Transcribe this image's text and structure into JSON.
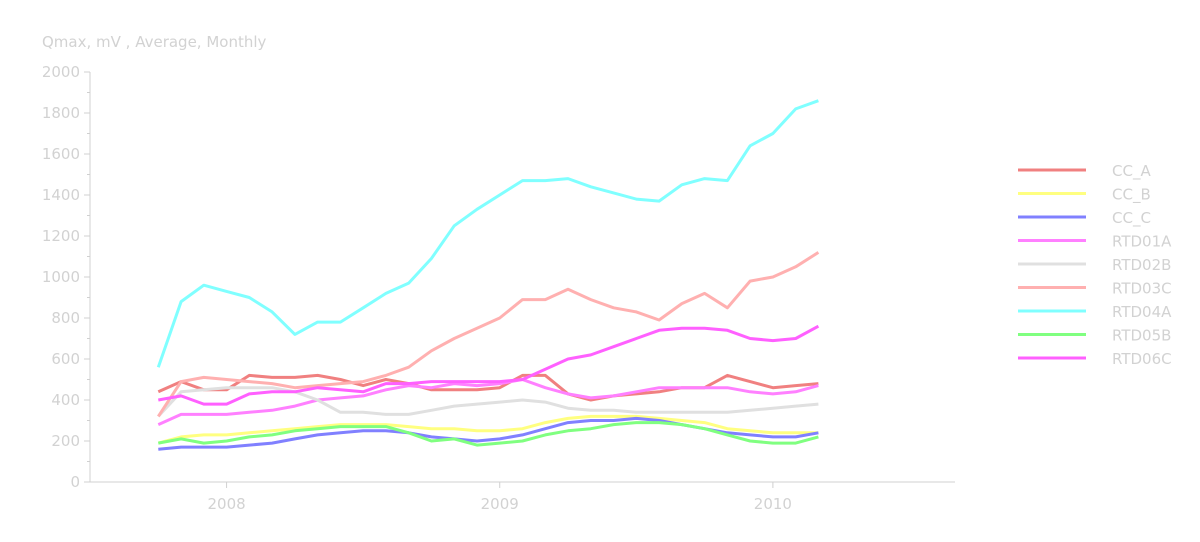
{
  "chart_data": {
    "type": "line",
    "title": "Qmax, mV , Average, Monthly",
    "xlabel": "",
    "ylabel": "",
    "xlim": [
      "2007-07-01",
      "2010-09-01"
    ],
    "ylim": [
      0,
      2000
    ],
    "y_ticks": [
      0,
      200,
      400,
      600,
      800,
      1000,
      1200,
      1400,
      1600,
      1800,
      2000
    ],
    "x_ticks": [
      {
        "label": "2008",
        "value": "2008-01-01"
      },
      {
        "label": "2009",
        "value": "2009-01-01"
      },
      {
        "label": "2010",
        "value": "2010-01-01"
      }
    ],
    "grid": false,
    "legend_position": "right",
    "x": [
      "2007-10",
      "2007-11",
      "2007-12",
      "2008-01",
      "2008-02",
      "2008-03",
      "2008-04",
      "2008-05",
      "2008-06",
      "2008-07",
      "2008-08",
      "2008-09",
      "2008-10",
      "2008-11",
      "2008-12",
      "2009-01",
      "2009-02",
      "2009-03",
      "2009-04",
      "2009-05",
      "2009-06",
      "2009-07",
      "2009-08",
      "2009-09",
      "2009-10",
      "2009-11",
      "2009-12",
      "2010-01",
      "2010-02",
      "2010-03"
    ],
    "series": [
      {
        "name": "CC_A",
        "color": "#f08080",
        "values": [
          440,
          490,
          450,
          450,
          520,
          510,
          510,
          520,
          500,
          470,
          500,
          480,
          450,
          450,
          450,
          460,
          520,
          520,
          430,
          400,
          420,
          430,
          440,
          460,
          460,
          520,
          490,
          460,
          470,
          480
        ]
      },
      {
        "name": "CC_B",
        "color": "#ffff80",
        "values": [
          190,
          220,
          230,
          230,
          240,
          250,
          260,
          270,
          280,
          280,
          280,
          270,
          260,
          260,
          250,
          250,
          260,
          290,
          310,
          320,
          320,
          320,
          310,
          300,
          290,
          260,
          250,
          240,
          240,
          240
        ]
      },
      {
        "name": "CC_C",
        "color": "#8080ff",
        "values": [
          160,
          170,
          170,
          170,
          180,
          190,
          210,
          230,
          240,
          250,
          250,
          240,
          220,
          210,
          200,
          210,
          230,
          260,
          290,
          300,
          300,
          310,
          300,
          280,
          260,
          240,
          230,
          220,
          220,
          240
        ]
      },
      {
        "name": "RTD01A",
        "color": "#ff80ff",
        "values": [
          280,
          330,
          330,
          330,
          340,
          350,
          370,
          400,
          410,
          420,
          450,
          470,
          460,
          480,
          470,
          480,
          500,
          460,
          430,
          410,
          420,
          440,
          460,
          460,
          460,
          460,
          440,
          430,
          440,
          470
        ]
      },
      {
        "name": "RTD02B",
        "color": "#e0e0e0",
        "values": [
          320,
          440,
          450,
          460,
          460,
          460,
          440,
          400,
          340,
          340,
          330,
          330,
          350,
          370,
          380,
          390,
          400,
          390,
          360,
          350,
          350,
          340,
          340,
          340,
          340,
          340,
          350,
          360,
          370,
          380
        ]
      },
      {
        "name": "RTD03C",
        "color": "#ffb0b0",
        "values": [
          320,
          490,
          510,
          500,
          490,
          480,
          460,
          470,
          480,
          490,
          520,
          560,
          640,
          700,
          750,
          800,
          890,
          890,
          940,
          890,
          850,
          830,
          790,
          870,
          920,
          850,
          980,
          1000,
          1050,
          1120
        ]
      },
      {
        "name": "RTD04A",
        "color": "#80ffff",
        "values": [
          560,
          880,
          960,
          930,
          900,
          830,
          720,
          780,
          780,
          850,
          920,
          970,
          1090,
          1250,
          1330,
          1400,
          1470,
          1470,
          1480,
          1440,
          1410,
          1380,
          1370,
          1450,
          1480,
          1470,
          1640,
          1700,
          1820,
          1860
        ]
      },
      {
        "name": "RTD05B",
        "color": "#80ff80",
        "values": [
          190,
          210,
          190,
          200,
          220,
          230,
          250,
          260,
          270,
          270,
          270,
          240,
          200,
          210,
          180,
          190,
          200,
          230,
          250,
          260,
          280,
          290,
          290,
          280,
          260,
          230,
          200,
          190,
          190,
          220
        ]
      },
      {
        "name": "RTD06C",
        "color": "#ff60ff",
        "values": [
          400,
          420,
          380,
          380,
          430,
          440,
          440,
          460,
          450,
          440,
          480,
          480,
          490,
          490,
          490,
          490,
          500,
          550,
          600,
          620,
          660,
          700,
          740,
          750,
          750,
          740,
          700,
          690,
          700,
          760
        ]
      }
    ]
  }
}
